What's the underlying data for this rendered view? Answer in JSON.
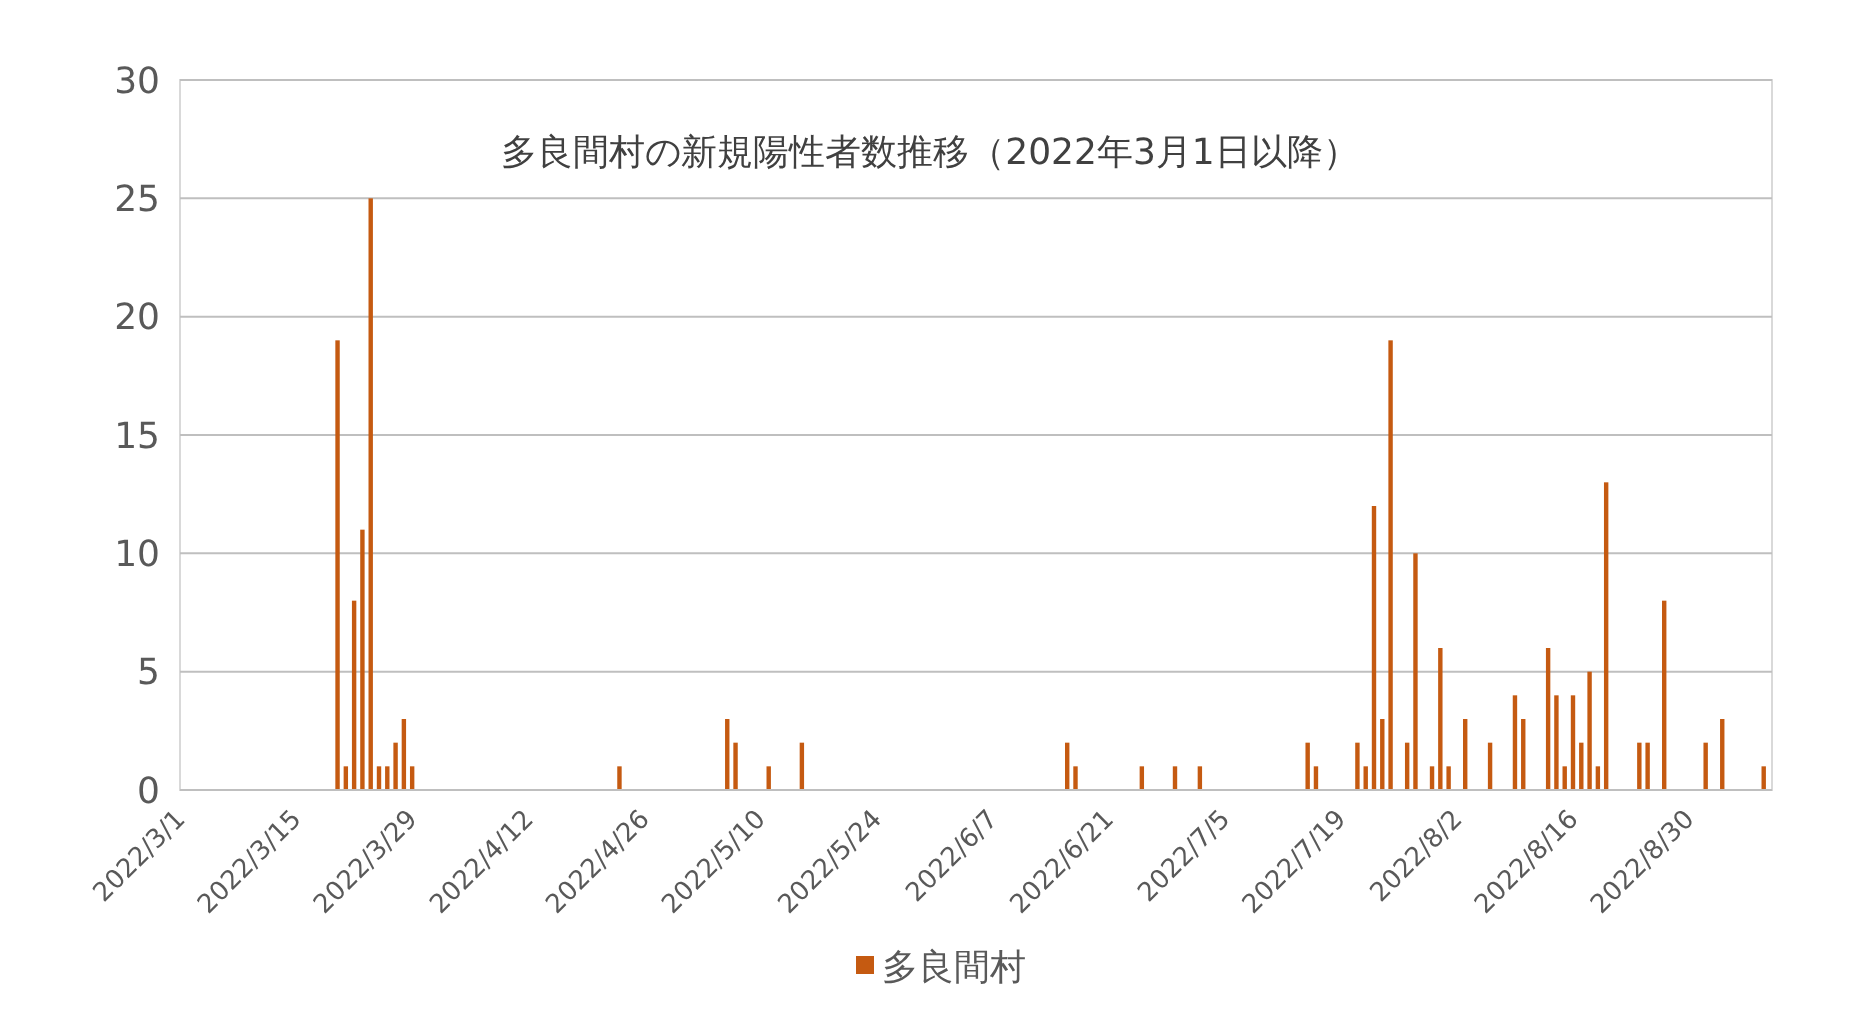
{
  "chart_data": {
    "type": "bar",
    "title": "多良間村の新規陽性者数推移（2022年3月1日以降）",
    "x": [
      "2022-03-20",
      "2022-03-21",
      "2022-03-22",
      "2022-03-23",
      "2022-03-24",
      "2022-03-25",
      "2022-03-26",
      "2022-03-27",
      "2022-03-28",
      "2022-03-29",
      "2022-04-23",
      "2022-05-06",
      "2022-05-07",
      "2022-05-11",
      "2022-05-15",
      "2022-06-16",
      "2022-06-17",
      "2022-06-25",
      "2022-06-29",
      "2022-07-02",
      "2022-07-15",
      "2022-07-16",
      "2022-07-21",
      "2022-07-22",
      "2022-07-23",
      "2022-07-24",
      "2022-07-25",
      "2022-07-27",
      "2022-07-28",
      "2022-07-30",
      "2022-07-31",
      "2022-08-01",
      "2022-08-03",
      "2022-08-06",
      "2022-08-09",
      "2022-08-10",
      "2022-08-13",
      "2022-08-14",
      "2022-08-15",
      "2022-08-16",
      "2022-08-17",
      "2022-08-18",
      "2022-08-19",
      "2022-08-20",
      "2022-08-24",
      "2022-08-25",
      "2022-08-27",
      "2022-09-01",
      "2022-09-03",
      "2022-09-08"
    ],
    "series": [
      {
        "name": "多良間村",
        "color": "#c55a11",
        "values": [
          19,
          1,
          8,
          11,
          25,
          1,
          1,
          2,
          3,
          1,
          1,
          3,
          2,
          1,
          2,
          2,
          1,
          1,
          1,
          1,
          2,
          1,
          2,
          1,
          12,
          3,
          19,
          2,
          10,
          1,
          6,
          1,
          3,
          2,
          4,
          3,
          6,
          4,
          1,
          4,
          2,
          5,
          1,
          13,
          2,
          2,
          8,
          2,
          3,
          1
        ]
      }
    ],
    "xlim": [
      "2022-03-01",
      "2022-09-09"
    ],
    "xticks": [
      {
        "value": "2022-03-01",
        "label": "2022/3/1"
      },
      {
        "value": "2022-03-15",
        "label": "2022/3/15"
      },
      {
        "value": "2022-03-29",
        "label": "2022/3/29"
      },
      {
        "value": "2022-04-12",
        "label": "2022/4/12"
      },
      {
        "value": "2022-04-26",
        "label": "2022/4/26"
      },
      {
        "value": "2022-05-10",
        "label": "2022/5/10"
      },
      {
        "value": "2022-05-24",
        "label": "2022/5/24"
      },
      {
        "value": "2022-06-07",
        "label": "2022/6/7"
      },
      {
        "value": "2022-06-21",
        "label": "2022/6/21"
      },
      {
        "value": "2022-07-05",
        "label": "2022/7/5"
      },
      {
        "value": "2022-07-19",
        "label": "2022/7/19"
      },
      {
        "value": "2022-08-02",
        "label": "2022/8/2"
      },
      {
        "value": "2022-08-16",
        "label": "2022/8/16"
      },
      {
        "value": "2022-08-30",
        "label": "2022/8/30"
      }
    ],
    "ylim": [
      0,
      30
    ],
    "yticks": [
      0,
      5,
      10,
      15,
      20,
      25,
      30
    ],
    "grid": "y",
    "legend": "bottom"
  }
}
